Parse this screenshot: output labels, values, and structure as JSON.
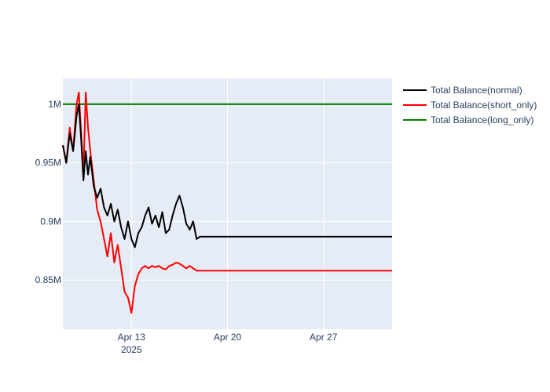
{
  "chart_data": {
    "type": "line",
    "title": "",
    "xlabel": "",
    "ylabel": "",
    "xlim": [
      "2025-04-08",
      "2025-05-02"
    ],
    "ylim": [
      0.808,
      1.022
    ],
    "x_ticks": [
      {
        "date": "2025-04-13",
        "label": "Apr 13",
        "sublabel": "2025"
      },
      {
        "date": "2025-04-20",
        "label": "Apr 20",
        "sublabel": ""
      },
      {
        "date": "2025-04-27",
        "label": "Apr 27",
        "sublabel": ""
      }
    ],
    "y_ticks": [
      {
        "value": 0.85,
        "label": "0.85M"
      },
      {
        "value": 0.9,
        "label": "0.9M"
      },
      {
        "value": 0.95,
        "label": "0.95M"
      },
      {
        "value": 1.0,
        "label": "1M"
      }
    ],
    "grid": true,
    "legend_position": "top-right",
    "colors": {
      "plot_bg": "#E5ECF6",
      "grid": "#ffffff",
      "text": "#2a3f5f"
    },
    "series": [
      {
        "name": "Total Balance(normal)",
        "color": "#000000",
        "points": [
          [
            "2025-04-08T00:00",
            0.965
          ],
          [
            "2025-04-08T06:00",
            0.95
          ],
          [
            "2025-04-08T12:00",
            0.975
          ],
          [
            "2025-04-08T18:00",
            0.96
          ],
          [
            "2025-04-09T00:00",
            0.99
          ],
          [
            "2025-04-09T04:00",
            1.0
          ],
          [
            "2025-04-09T08:00",
            0.97
          ],
          [
            "2025-04-09T12:00",
            0.935
          ],
          [
            "2025-04-09T16:00",
            0.96
          ],
          [
            "2025-04-09T20:00",
            0.94
          ],
          [
            "2025-04-10T00:00",
            0.955
          ],
          [
            "2025-04-10T06:00",
            0.93
          ],
          [
            "2025-04-10T12:00",
            0.92
          ],
          [
            "2025-04-10T18:00",
            0.928
          ],
          [
            "2025-04-11T00:00",
            0.912
          ],
          [
            "2025-04-11T06:00",
            0.905
          ],
          [
            "2025-04-11T12:00",
            0.915
          ],
          [
            "2025-04-11T18:00",
            0.9
          ],
          [
            "2025-04-12T00:00",
            0.91
          ],
          [
            "2025-04-12T06:00",
            0.895
          ],
          [
            "2025-04-12T12:00",
            0.885
          ],
          [
            "2025-04-12T18:00",
            0.9
          ],
          [
            "2025-04-13T00:00",
            0.885
          ],
          [
            "2025-04-13T06:00",
            0.878
          ],
          [
            "2025-04-13T12:00",
            0.89
          ],
          [
            "2025-04-13T18:00",
            0.895
          ],
          [
            "2025-04-14T00:00",
            0.905
          ],
          [
            "2025-04-14T06:00",
            0.912
          ],
          [
            "2025-04-14T12:00",
            0.898
          ],
          [
            "2025-04-14T18:00",
            0.905
          ],
          [
            "2025-04-15T00:00",
            0.895
          ],
          [
            "2025-04-15T06:00",
            0.908
          ],
          [
            "2025-04-15T12:00",
            0.89
          ],
          [
            "2025-04-15T18:00",
            0.893
          ],
          [
            "2025-04-16T00:00",
            0.905
          ],
          [
            "2025-04-16T06:00",
            0.915
          ],
          [
            "2025-04-16T12:00",
            0.922
          ],
          [
            "2025-04-16T18:00",
            0.912
          ],
          [
            "2025-04-17T00:00",
            0.898
          ],
          [
            "2025-04-17T06:00",
            0.893
          ],
          [
            "2025-04-17T12:00",
            0.9
          ],
          [
            "2025-04-17T18:00",
            0.885
          ],
          [
            "2025-04-18T00:00",
            0.887
          ],
          [
            "2025-05-02T00:00",
            0.887
          ]
        ]
      },
      {
        "name": "Total Balance(short_only)",
        "color": "#FF0000",
        "points": [
          [
            "2025-04-08T00:00",
            0.965
          ],
          [
            "2025-04-08T06:00",
            0.95
          ],
          [
            "2025-04-08T12:00",
            0.98
          ],
          [
            "2025-04-08T18:00",
            0.96
          ],
          [
            "2025-04-09T00:00",
            1.0
          ],
          [
            "2025-04-09T04:00",
            1.01
          ],
          [
            "2025-04-09T08:00",
            0.975
          ],
          [
            "2025-04-09T12:00",
            0.94
          ],
          [
            "2025-04-09T16:00",
            1.01
          ],
          [
            "2025-04-09T20:00",
            0.98
          ],
          [
            "2025-04-10T00:00",
            0.96
          ],
          [
            "2025-04-10T06:00",
            0.935
          ],
          [
            "2025-04-10T12:00",
            0.91
          ],
          [
            "2025-04-10T18:00",
            0.9
          ],
          [
            "2025-04-11T00:00",
            0.885
          ],
          [
            "2025-04-11T06:00",
            0.87
          ],
          [
            "2025-04-11T12:00",
            0.89
          ],
          [
            "2025-04-11T18:00",
            0.865
          ],
          [
            "2025-04-12T00:00",
            0.88
          ],
          [
            "2025-04-12T06:00",
            0.86
          ],
          [
            "2025-04-12T12:00",
            0.84
          ],
          [
            "2025-04-12T18:00",
            0.835
          ],
          [
            "2025-04-13T00:00",
            0.822
          ],
          [
            "2025-04-13T06:00",
            0.845
          ],
          [
            "2025-04-13T12:00",
            0.855
          ],
          [
            "2025-04-13T18:00",
            0.86
          ],
          [
            "2025-04-14T00:00",
            0.862
          ],
          [
            "2025-04-14T06:00",
            0.86
          ],
          [
            "2025-04-14T12:00",
            0.862
          ],
          [
            "2025-04-14T18:00",
            0.861
          ],
          [
            "2025-04-15T00:00",
            0.862
          ],
          [
            "2025-04-15T06:00",
            0.86
          ],
          [
            "2025-04-15T12:00",
            0.859
          ],
          [
            "2025-04-15T18:00",
            0.862
          ],
          [
            "2025-04-16T00:00",
            0.863
          ],
          [
            "2025-04-16T06:00",
            0.865
          ],
          [
            "2025-04-16T12:00",
            0.864
          ],
          [
            "2025-04-16T18:00",
            0.862
          ],
          [
            "2025-04-17T00:00",
            0.86
          ],
          [
            "2025-04-17T06:00",
            0.862
          ],
          [
            "2025-04-17T12:00",
            0.86
          ],
          [
            "2025-04-17T18:00",
            0.858
          ],
          [
            "2025-04-18T00:00",
            0.858
          ],
          [
            "2025-05-02T00:00",
            0.858
          ]
        ]
      },
      {
        "name": "Total Balance(long_only)",
        "color": "#008000",
        "points": [
          [
            "2025-04-08T00:00",
            1.0
          ],
          [
            "2025-05-02T00:00",
            1.0
          ]
        ]
      }
    ]
  }
}
